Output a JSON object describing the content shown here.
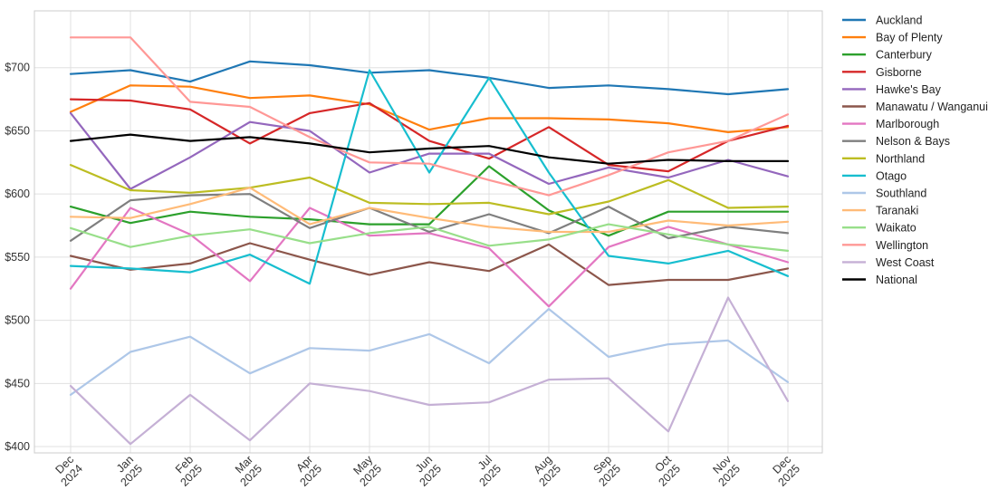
{
  "chart_data": {
    "type": "line",
    "title": "",
    "xlabel": "",
    "ylabel": "",
    "ylim": [
      395,
      745
    ],
    "y_ticks": [
      400,
      450,
      500,
      550,
      600,
      650,
      700
    ],
    "y_tick_labels": [
      "$400",
      "$450",
      "$500",
      "$550",
      "$600",
      "$650",
      "$700"
    ],
    "grid": true,
    "legend_position": "right",
    "categories": [
      [
        "Dec",
        "2024"
      ],
      [
        "Jan",
        "2025"
      ],
      [
        "Feb",
        "2025"
      ],
      [
        "Mar",
        "2025"
      ],
      [
        "Apr",
        "2025"
      ],
      [
        "May",
        "2025"
      ],
      [
        "Jun",
        "2025"
      ],
      [
        "Jul",
        "2025"
      ],
      [
        "Aug",
        "2025"
      ],
      [
        "Sep",
        "2025"
      ],
      [
        "Oct",
        "2025"
      ],
      [
        "Nov",
        "2025"
      ],
      [
        "Dec",
        "2025"
      ]
    ],
    "series": [
      {
        "name": "Auckland",
        "color": "#1f77b4",
        "values": [
          695,
          698,
          689,
          705,
          702,
          696,
          698,
          692,
          684,
          686,
          683,
          679,
          683
        ]
      },
      {
        "name": "Bay of Plenty",
        "color": "#ff7f0e",
        "values": [
          665,
          686,
          685,
          676,
          678,
          671,
          651,
          660,
          660,
          659,
          656,
          649,
          653
        ]
      },
      {
        "name": "Canterbury",
        "color": "#2ca02c",
        "values": [
          590,
          577,
          586,
          582,
          580,
          576,
          576,
          622,
          587,
          567,
          586,
          586,
          586
        ]
      },
      {
        "name": "Gisborne",
        "color": "#d62728",
        "values": [
          675,
          674,
          667,
          640,
          664,
          672,
          642,
          628,
          653,
          623,
          618,
          642,
          654
        ]
      },
      {
        "name": "Hawke's Bay",
        "color": "#9467bd",
        "values": [
          664,
          604,
          629,
          657,
          650,
          617,
          632,
          632,
          608,
          621,
          613,
          627,
          614
        ]
      },
      {
        "name": "Manawatu / Wanganui",
        "color": "#8c564b",
        "values": [
          551,
          540,
          545,
          561,
          548,
          536,
          546,
          539,
          560,
          528,
          532,
          532,
          541
        ]
      },
      {
        "name": "Marlborough",
        "color": "#e377c2",
        "values": [
          525,
          589,
          568,
          531,
          589,
          567,
          569,
          557,
          511,
          558,
          574,
          560,
          546
        ]
      },
      {
        "name": "Nelson & Bays",
        "color": "#7f7f7f",
        "values": [
          563,
          595,
          599,
          600,
          573,
          589,
          570,
          584,
          569,
          590,
          565,
          574,
          569
        ]
      },
      {
        "name": "Northland",
        "color": "#bcbd22",
        "values": [
          623,
          603,
          601,
          605,
          613,
          593,
          592,
          593,
          584,
          594,
          611,
          589,
          590
        ]
      },
      {
        "name": "Otago",
        "color": "#17becf",
        "values": [
          543,
          541,
          538,
          552,
          529,
          698,
          617,
          692,
          617,
          551,
          545,
          555,
          535
        ]
      },
      {
        "name": "Southland",
        "color": "#aec7e8",
        "values": [
          441,
          475,
          487,
          458,
          478,
          476,
          489,
          466,
          509,
          471,
          481,
          484,
          451
        ]
      },
      {
        "name": "Taranaki",
        "color": "#ffbb78",
        "values": [
          582,
          581,
          592,
          605,
          576,
          589,
          581,
          574,
          570,
          570,
          579,
          575,
          578
        ]
      },
      {
        "name": "Waikato",
        "color": "#98df8a",
        "values": [
          573,
          558,
          567,
          572,
          561,
          569,
          574,
          559,
          564,
          576,
          568,
          560,
          555
        ]
      },
      {
        "name": "Wellington",
        "color": "#ff9896",
        "values": [
          724,
          724,
          673,
          669,
          645,
          625,
          624,
          611,
          599,
          615,
          633,
          642,
          663
        ]
      },
      {
        "name": "West Coast",
        "color": "#c5b0d5",
        "values": [
          448,
          402,
          441,
          405,
          450,
          444,
          433,
          435,
          453,
          454,
          412,
          518,
          436
        ]
      },
      {
        "name": "National",
        "color": "#000000",
        "values": [
          642,
          647,
          642,
          645,
          640,
          633,
          636,
          638,
          629,
          624,
          627,
          626,
          626
        ]
      }
    ]
  }
}
